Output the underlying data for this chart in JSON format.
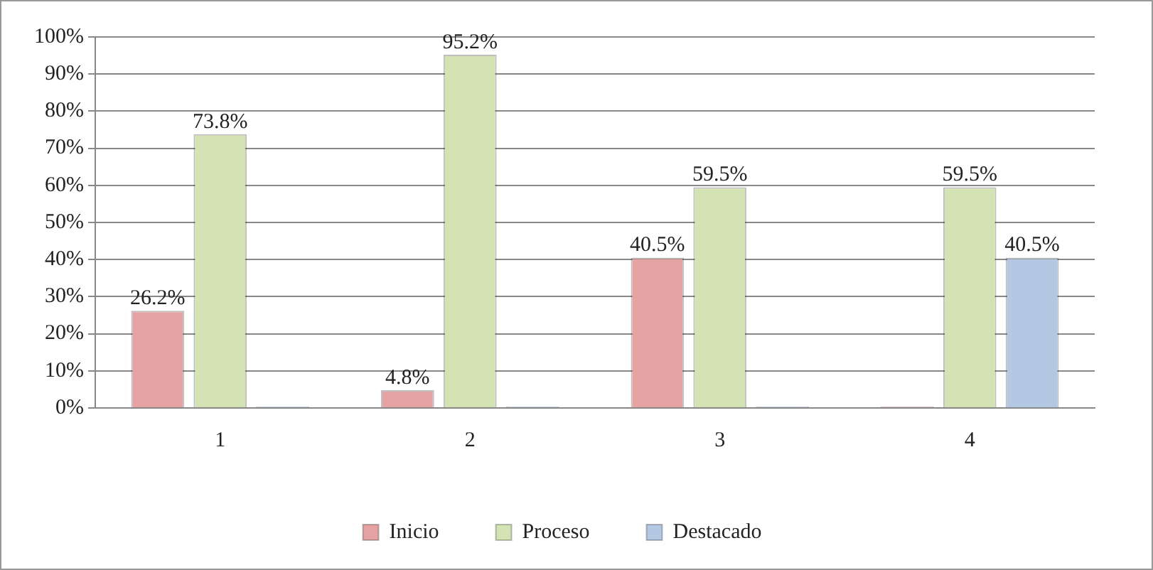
{
  "chart_data": {
    "type": "bar",
    "categories": [
      "1",
      "2",
      "3",
      "4"
    ],
    "series": [
      {
        "name": "Inicio",
        "color": "#e6a3a3",
        "values": [
          26.2,
          4.8,
          40.5,
          0
        ],
        "value_labels": [
          "26.2%",
          "4.8%",
          "40.5%",
          null
        ]
      },
      {
        "name": "Proceso",
        "color": "#d4e3b3",
        "values": [
          73.8,
          95.2,
          59.5,
          59.5
        ],
        "value_labels": [
          "73.8%",
          "95.2%",
          "59.5%",
          "59.5%"
        ]
      },
      {
        "name": "Destacado",
        "color": "#b3c9e3",
        "values": [
          0,
          0,
          0,
          40.5
        ],
        "value_labels": [
          null,
          null,
          null,
          "40.5%"
        ]
      }
    ],
    "ylim": [
      0,
      100
    ],
    "yticks": [
      {
        "value": 0,
        "label": "0%"
      },
      {
        "value": 10,
        "label": "10%"
      },
      {
        "value": 20,
        "label": "20%"
      },
      {
        "value": 30,
        "label": "30%"
      },
      {
        "value": 40,
        "label": "40%"
      },
      {
        "value": 50,
        "label": "50%"
      },
      {
        "value": 60,
        "label": "60%"
      },
      {
        "value": 70,
        "label": "70%"
      },
      {
        "value": 80,
        "label": "80%"
      },
      {
        "value": 90,
        "label": "90%"
      },
      {
        "value": 100,
        "label": "100%"
      }
    ],
    "grid": "y",
    "legend": "bottom"
  }
}
